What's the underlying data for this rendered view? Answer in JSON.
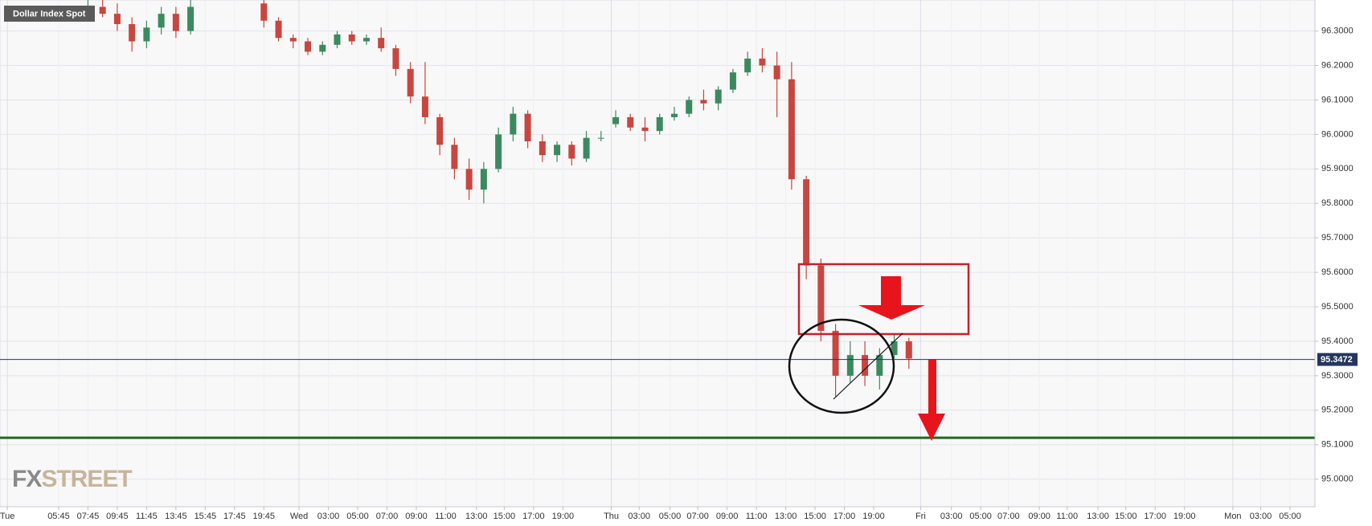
{
  "chart_data": {
    "type": "candlestick",
    "title": "Dollar Index Spot",
    "brand": [
      "FX",
      "STREET"
    ],
    "up_color": "#3b8a5f",
    "down_color": "#c8463f",
    "xlim": [
      0,
      89.7
    ],
    "ylim": [
      94.92,
      96.39
    ],
    "yticks": [
      {
        "value": 95.0,
        "label": "95.0000"
      },
      {
        "value": 95.1,
        "label": "95.1000"
      },
      {
        "value": 95.2,
        "label": "95.2000"
      },
      {
        "value": 95.3,
        "label": "95.3000"
      },
      {
        "value": 95.4,
        "label": "95.4000"
      },
      {
        "value": 95.5,
        "label": "95.5000"
      },
      {
        "value": 95.6,
        "label": "95.6000"
      },
      {
        "value": 95.7,
        "label": "95.7000"
      },
      {
        "value": 95.8,
        "label": "95.8000"
      },
      {
        "value": 95.9,
        "label": "95.9000"
      },
      {
        "value": 96.0,
        "label": "96.0000"
      },
      {
        "value": 96.1,
        "label": "96.1000"
      },
      {
        "value": 96.2,
        "label": "96.2000"
      },
      {
        "value": 96.3,
        "label": "96.3000"
      }
    ],
    "xticks": [
      {
        "value": 0.5,
        "label": "Tue"
      },
      {
        "value": 4,
        "label": "05:45"
      },
      {
        "value": 6,
        "label": "07:45"
      },
      {
        "value": 8,
        "label": "09:45"
      },
      {
        "value": 10,
        "label": "11:45"
      },
      {
        "value": 12,
        "label": "13:45"
      },
      {
        "value": 14,
        "label": "15:45"
      },
      {
        "value": 16,
        "label": "17:45"
      },
      {
        "value": 18,
        "label": "19:45"
      },
      {
        "value": 20.4,
        "label": "Wed"
      },
      {
        "value": 22.4,
        "label": "03:00"
      },
      {
        "value": 24.4,
        "label": "05:00"
      },
      {
        "value": 26.4,
        "label": "07:00"
      },
      {
        "value": 28.4,
        "label": "09:00"
      },
      {
        "value": 30.4,
        "label": "11:00"
      },
      {
        "value": 32.5,
        "label": "13:00"
      },
      {
        "value": 34.4,
        "label": "15:00"
      },
      {
        "value": 36.4,
        "label": "17:00"
      },
      {
        "value": 38.4,
        "label": "19:00"
      },
      {
        "value": 41.7,
        "label": "Thu"
      },
      {
        "value": 43.6,
        "label": "03:00"
      },
      {
        "value": 45.7,
        "label": "05:00"
      },
      {
        "value": 47.6,
        "label": "07:00"
      },
      {
        "value": 49.6,
        "label": "09:00"
      },
      {
        "value": 51.6,
        "label": "11:00"
      },
      {
        "value": 53.6,
        "label": "13:00"
      },
      {
        "value": 55.6,
        "label": "15:00"
      },
      {
        "value": 57.6,
        "label": "17:00"
      },
      {
        "value": 59.6,
        "label": "19:00"
      },
      {
        "value": 62.8,
        "label": "Fri"
      },
      {
        "value": 64.9,
        "label": "03:00"
      },
      {
        "value": 66.9,
        "label": "05:00"
      },
      {
        "value": 68.8,
        "label": "07:00"
      },
      {
        "value": 70.9,
        "label": "09:00"
      },
      {
        "value": 72.8,
        "label": "11:00"
      },
      {
        "value": 74.9,
        "label": "13:00"
      },
      {
        "value": 76.8,
        "label": "15:00"
      },
      {
        "value": 78.8,
        "label": "17:00"
      },
      {
        "value": 80.8,
        "label": "19:00"
      },
      {
        "value": 84.1,
        "label": "Mon"
      },
      {
        "value": 86,
        "label": "03:00"
      },
      {
        "value": 88,
        "label": "05:00"
      }
    ],
    "x": [
      6,
      7,
      8,
      9,
      10,
      11,
      12,
      13,
      18,
      19,
      20,
      21,
      22,
      23,
      24,
      25,
      26,
      27,
      28,
      29,
      30,
      31,
      32,
      33,
      34,
      35,
      36,
      37,
      38,
      39,
      40,
      41,
      42,
      43,
      44,
      45,
      46,
      47,
      48,
      49,
      50,
      51,
      52,
      53,
      54,
      55,
      56,
      57,
      58,
      59,
      60,
      61,
      62
    ],
    "open": [
      96.36,
      96.37,
      96.35,
      96.32,
      96.27,
      96.31,
      96.35,
      96.3,
      96.38,
      96.33,
      96.28,
      96.27,
      96.24,
      96.26,
      96.29,
      96.27,
      96.28,
      96.25,
      96.19,
      96.11,
      96.05,
      95.97,
      95.9,
      95.84,
      95.9,
      96.0,
      96.06,
      95.98,
      95.94,
      95.97,
      95.93,
      95.99,
      96.03,
      96.05,
      96.02,
      96.01,
      96.05,
      96.06,
      96.1,
      96.09,
      96.13,
      96.18,
      96.22,
      96.2,
      96.16,
      95.87,
      95.62,
      95.43,
      95.3,
      95.36,
      95.3,
      95.36,
      95.4
    ],
    "high": [
      96.39,
      96.39,
      96.38,
      96.34,
      96.33,
      96.37,
      96.37,
      96.39,
      96.39,
      96.34,
      96.29,
      96.28,
      96.27,
      96.3,
      96.3,
      96.29,
      96.31,
      96.26,
      96.21,
      96.21,
      96.06,
      95.99,
      95.93,
      95.92,
      96.02,
      96.08,
      96.07,
      96.0,
      95.98,
      95.98,
      96.01,
      96.01,
      96.07,
      96.06,
      96.05,
      96.06,
      96.08,
      96.11,
      96.13,
      96.14,
      96.19,
      96.24,
      96.25,
      96.24,
      96.21,
      95.88,
      95.64,
      95.45,
      95.4,
      95.4,
      95.38,
      95.42,
      95.41
    ],
    "low": [
      96.33,
      96.34,
      96.3,
      96.24,
      96.25,
      96.29,
      96.28,
      96.29,
      96.31,
      96.27,
      96.25,
      96.23,
      96.23,
      96.25,
      96.26,
      96.26,
      96.24,
      96.17,
      96.09,
      96.03,
      95.94,
      95.87,
      95.81,
      95.8,
      95.89,
      95.98,
      95.96,
      95.92,
      95.92,
      95.91,
      95.92,
      95.98,
      96.02,
      96.01,
      95.98,
      96.0,
      96.04,
      96.05,
      96.07,
      96.07,
      96.12,
      96.17,
      96.18,
      96.05,
      95.84,
      95.58,
      95.4,
      95.24,
      95.28,
      95.27,
      95.26,
      95.35,
      95.32
    ],
    "close": [
      96.37,
      96.35,
      96.32,
      96.27,
      96.31,
      96.35,
      96.3,
      96.37,
      96.33,
      96.28,
      96.27,
      96.24,
      96.26,
      96.29,
      96.27,
      96.28,
      96.25,
      96.19,
      96.11,
      96.05,
      95.97,
      95.9,
      95.84,
      95.9,
      96.0,
      96.06,
      95.98,
      95.94,
      95.97,
      95.93,
      95.99,
      95.99,
      96.05,
      96.02,
      96.01,
      96.05,
      96.06,
      96.1,
      96.09,
      96.13,
      96.18,
      96.22,
      96.2,
      96.16,
      95.87,
      95.62,
      95.43,
      95.3,
      95.36,
      95.3,
      95.36,
      95.4,
      95.35
    ],
    "last_price": 95.3472,
    "last_price_color": "#24365e",
    "support_level": 95.12,
    "support_color": "#1e6a24",
    "grid": true
  }
}
